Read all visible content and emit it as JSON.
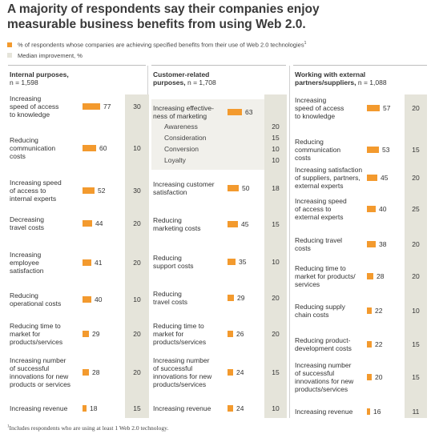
{
  "title_line1": "A majority of respondents say their companies enjoy",
  "title_line2": "measurable business benefits from using Web 2.0.",
  "legend": {
    "benefit": "% of respondents whose companies are achieving specified benefits from their use of Web 2.0 technologies",
    "benefit_sup": "1",
    "median": "Median improvement, %"
  },
  "footnote": {
    "sup": "1",
    "text": "Includes respondents who are using at least 1 Web 2.0 technology."
  },
  "colors": {
    "bar": "#f39a2e",
    "median_column": "#e5e4da",
    "sub_box": "#f1f0eb"
  },
  "chart_data": [
    {
      "type": "bar",
      "panel": "internal",
      "title_bold": "Internal purposes,",
      "subtitle": "n = 1,598",
      "rows": [
        {
          "label": [
            "Increasing",
            "speed of access",
            "to knowledge"
          ],
          "value": 77,
          "median": 30
        },
        {
          "label": [
            "Reducing",
            "communication",
            "costs"
          ],
          "value": 60,
          "median": 10
        },
        {
          "label": [
            "Increasing speed",
            "of access to",
            "internal experts"
          ],
          "value": 52,
          "median": 30
        },
        {
          "label": [
            "Decreasing",
            "travel costs"
          ],
          "value": 44,
          "median": 20
        },
        {
          "label": [
            "Increasing",
            "employee",
            "satisfaction"
          ],
          "value": 41,
          "median": 20
        },
        {
          "label": [
            "Reducing",
            "operational costs"
          ],
          "value": 40,
          "median": 10
        },
        {
          "label": [
            "Reducing time to",
            "market for",
            "products/services"
          ],
          "value": 29,
          "median": 20
        },
        {
          "label": [
            "Increasing number",
            "of successful",
            "innovations for new",
            "products or services"
          ],
          "value": 28,
          "median": 20
        },
        {
          "label": [
            "Increasing revenue"
          ],
          "value": 18,
          "median": 15
        }
      ]
    },
    {
      "type": "bar",
      "panel": "customer",
      "title_bold": "Customer-related",
      "title_bold2": "purposes,",
      "subtitle": "n = 1,708",
      "rows": [
        {
          "label": [
            "Increasing effective-",
            "ness of marketing"
          ],
          "value": 63,
          "median": null,
          "sub": [
            {
              "label": "Awareness",
              "median": 20
            },
            {
              "label": "Consideration",
              "median": 15
            },
            {
              "label": "Conversion",
              "median": 10
            },
            {
              "label": "Loyalty",
              "median": 10
            }
          ]
        },
        {
          "label": [
            "Increasing customer",
            "satisfaction"
          ],
          "value": 50,
          "median": 18
        },
        {
          "label": [
            "Reducing",
            "marketing costs"
          ],
          "value": 45,
          "median": 15
        },
        {
          "label": [
            "Reducing",
            "support costs"
          ],
          "value": 35,
          "median": 10
        },
        {
          "label": [
            "Reducing",
            "travel costs"
          ],
          "value": 29,
          "median": 20
        },
        {
          "label": [
            "Reducing time to",
            "market for",
            "products/services"
          ],
          "value": 26,
          "median": 20
        },
        {
          "label": [
            "Increasing number",
            "of successful",
            "innovations for new",
            "products/services"
          ],
          "value": 24,
          "median": 15
        },
        {
          "label": [
            "Increasing revenue"
          ],
          "value": 24,
          "median": 10
        }
      ]
    },
    {
      "type": "bar",
      "panel": "external",
      "title_bold": "Working with external",
      "title_bold2": "partners/suppliers,",
      "subtitle": "n = 1,088",
      "rows": [
        {
          "label": [
            "Increasing",
            "speed of access",
            "to knowledge"
          ],
          "value": 57,
          "median": 20
        },
        {
          "label": [
            "Reducing",
            "communication",
            "costs"
          ],
          "value": 53,
          "median": 15
        },
        {
          "label": [
            "Increasing satisfaction",
            "of suppliers, partners,",
            "external experts"
          ],
          "value": 45,
          "median": 20
        },
        {
          "label": [
            "Increasing speed",
            "of access to",
            "external experts"
          ],
          "value": 40,
          "median": 25
        },
        {
          "label": [
            "Reducing travel",
            "costs"
          ],
          "value": 38,
          "median": 20
        },
        {
          "label": [
            "Reducing time to",
            "market for products/",
            "services"
          ],
          "value": 28,
          "median": 20
        },
        {
          "label": [
            "Reducing supply",
            "chain costs"
          ],
          "value": 22,
          "median": 10
        },
        {
          "label": [
            "Reducing product-",
            "development costs"
          ],
          "value": 22,
          "median": 15
        },
        {
          "label": [
            "Increasing number",
            "of successful",
            "innovations for new",
            "products/services"
          ],
          "value": 20,
          "median": 15
        },
        {
          "label": [
            "Increasing revenue"
          ],
          "value": 16,
          "median": 11
        }
      ]
    }
  ]
}
